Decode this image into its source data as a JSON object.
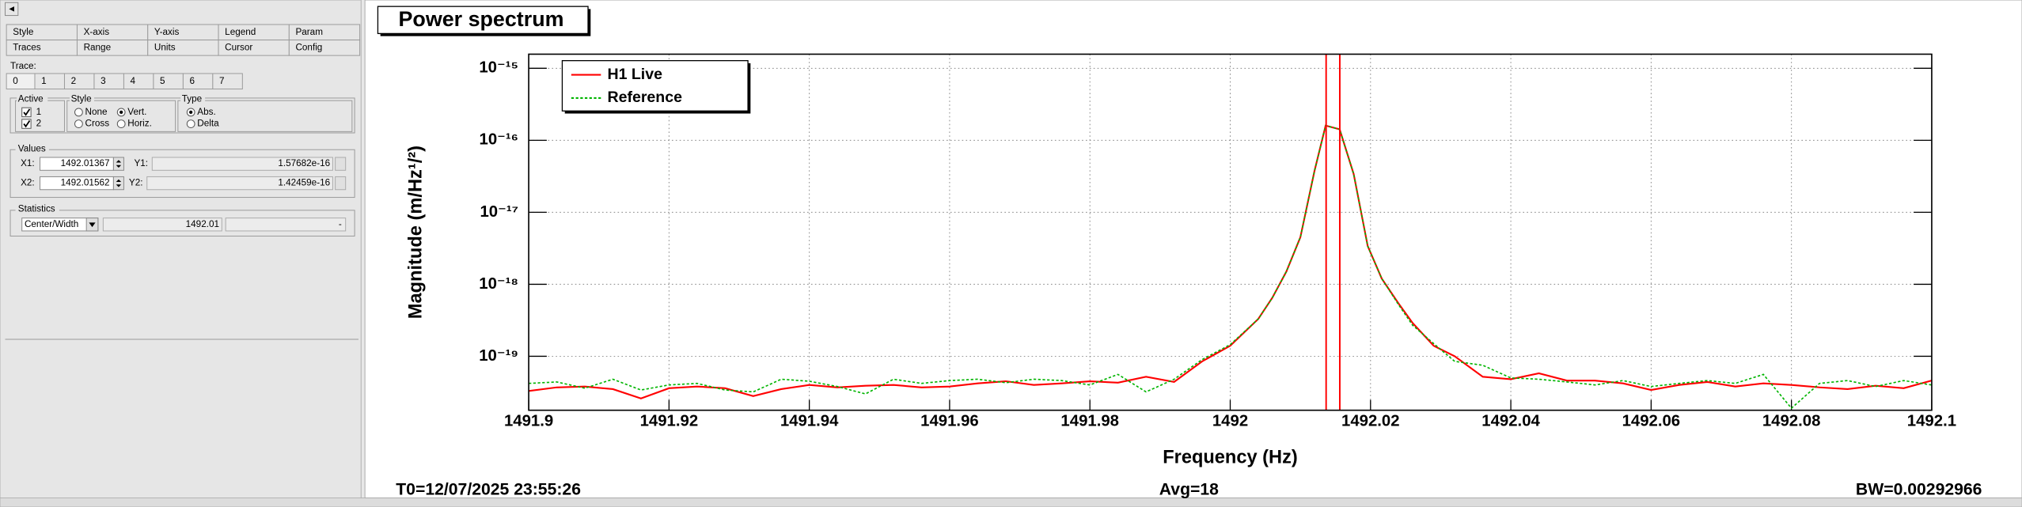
{
  "panel": {
    "tabs_row1": [
      "Style",
      "X-axis",
      "Y-axis",
      "Legend",
      "Param"
    ],
    "tabs_row2": [
      "Traces",
      "Range",
      "Units",
      "Cursor",
      "Config"
    ],
    "trace_label": "Trace:",
    "trace_tabs": [
      "0",
      "1",
      "2",
      "3",
      "4",
      "5",
      "6",
      "7"
    ],
    "active_label": "Active",
    "active_options": [
      "1",
      "2"
    ],
    "active_checked": [
      true,
      true
    ],
    "style_label": "Style",
    "style_options": [
      "None",
      "Vert.",
      "Cross",
      "Horiz."
    ],
    "style_selected": 1,
    "type_label": "Type",
    "type_options": [
      "Abs.",
      "Delta"
    ],
    "type_selected": 0,
    "values_label": "Values",
    "x1_label": "X1:",
    "x1": 1492.01367,
    "y1_label": "Y1:",
    "y1": 1.57682e-16,
    "x2_label": "X2:",
    "x2": 1492.01562,
    "y2_label": "Y2:",
    "y2": 1.42459e-16,
    "statistics_label": "Statistics",
    "statistics_mode": "Center/Width",
    "statistics_value": 1492.01,
    "statistics_extra": "-"
  },
  "chart_data": {
    "type": "line",
    "title": "Power spectrum",
    "x_label": "Frequency (Hz)",
    "y_label": "Magnitude (m/Hz¹/²)",
    "log_y": true,
    "grid": true,
    "legend_position": "top-left",
    "xlim": [
      1491.9,
      1492.1
    ],
    "xticks": [
      1491.9,
      1491.92,
      1491.94,
      1491.96,
      1491.98,
      1492,
      1492.02,
      1492.04,
      1492.06,
      1492.08,
      1492.1
    ],
    "ylim": [
      1.78e-20,
      1.57e-15
    ],
    "yticks": [
      {
        "value": 1e-19,
        "label": "10⁻¹⁹"
      },
      {
        "value": 1e-18,
        "label": "10⁻¹⁸"
      },
      {
        "value": 1e-17,
        "label": "10⁻¹⁷"
      },
      {
        "value": 1e-16,
        "label": "10⁻¹⁶"
      },
      {
        "value": 1e-15,
        "label": "10⁻¹⁵"
      }
    ],
    "x": [
      1491.9,
      1491.904,
      1491.908,
      1491.912,
      1491.916,
      1491.92,
      1491.924,
      1491.928,
      1491.932,
      1491.936,
      1491.94,
      1491.944,
      1491.948,
      1491.952,
      1491.956,
      1491.96,
      1491.964,
      1491.968,
      1491.972,
      1491.976,
      1491.98,
      1491.984,
      1491.988,
      1491.992,
      1491.996,
      1492.0,
      1492.004,
      1492.006,
      1492.008,
      1492.01,
      1492.012,
      1492.0136,
      1492.0156,
      1492.0176,
      1492.0196,
      1492.0216,
      1492.024,
      1492.026,
      1492.029,
      1492.032,
      1492.036,
      1492.04,
      1492.044,
      1492.048,
      1492.052,
      1492.056,
      1492.06,
      1492.064,
      1492.068,
      1492.072,
      1492.076,
      1492.08,
      1492.084,
      1492.088,
      1492.092,
      1492.096,
      1492.1
    ],
    "series": [
      {
        "name": "H1 Live",
        "color": "#ff0000",
        "style": "solid",
        "values": [
          3.3e-20,
          3.7e-20,
          3.8e-20,
          3.5e-20,
          2.6e-20,
          3.6e-20,
          3.8e-20,
          3.6e-20,
          2.8e-20,
          3.5e-20,
          4e-20,
          3.7e-20,
          3.9e-20,
          4e-20,
          3.7e-20,
          3.8e-20,
          4.2e-20,
          4.5e-20,
          4e-20,
          4.2e-20,
          4.5e-20,
          4.3e-20,
          5.2e-20,
          4.4e-20,
          8.5e-20,
          1.4e-19,
          3.3e-19,
          6.5e-19,
          1.5e-18,
          4.5e-18,
          3.7e-17,
          1.6e-16,
          1.42e-16,
          3.4e-17,
          3.4e-18,
          1.2e-18,
          5.4e-19,
          2.9e-19,
          1.4e-19,
          1e-19,
          5.2e-20,
          4.8e-20,
          5.8e-20,
          4.6e-20,
          4.6e-20,
          4.2e-20,
          3.4e-20,
          4e-20,
          4.4e-20,
          3.8e-20,
          4.2e-20,
          4e-20,
          3.7e-20,
          3.5e-20,
          3.9e-20,
          3.6e-20,
          4.6e-20
        ]
      },
      {
        "name": "Reference",
        "color": "#00b400",
        "style": "dotted",
        "values": [
          4.2e-20,
          4.4e-20,
          3.6e-20,
          4.8e-20,
          3.4e-20,
          4e-20,
          4.2e-20,
          3.4e-20,
          3.2e-20,
          4.8e-20,
          4.5e-20,
          3.8e-20,
          3e-20,
          4.8e-20,
          4.2e-20,
          4.6e-20,
          4.8e-20,
          4.3e-20,
          4.8e-20,
          4.6e-20,
          4e-20,
          5.6e-20,
          3.2e-20,
          4.8e-20,
          9e-20,
          1.45e-19,
          3.3e-19,
          6.5e-19,
          1.5e-18,
          4.5e-18,
          3.7e-17,
          1.6e-16,
          1.42e-16,
          3.4e-17,
          3.4e-18,
          1.2e-18,
          5.2e-19,
          2.7e-19,
          1.5e-19,
          8.5e-20,
          7.5e-20,
          5e-20,
          4.8e-20,
          4.4e-20,
          4e-20,
          4.6e-20,
          3.8e-20,
          4.2e-20,
          4.6e-20,
          4.2e-20,
          5.6e-20,
          1.9e-20,
          4.2e-20,
          4.6e-20,
          3.8e-20,
          4.6e-20,
          4e-20
        ]
      }
    ]
  },
  "footer": {
    "t0": "T0=12/07/2025 23:55:26",
    "avg": "Avg=18",
    "bw": "BW=0.00292966"
  }
}
